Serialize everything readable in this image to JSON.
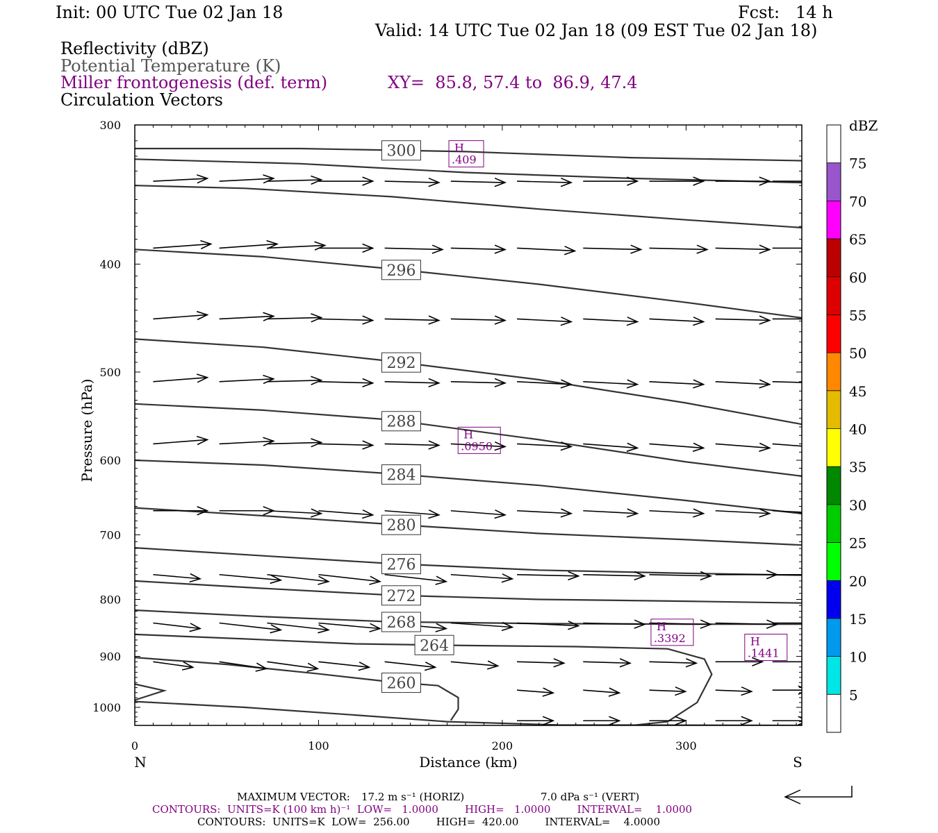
{
  "header": {
    "init": "Init: 00 UTC Tue 02 Jan 18",
    "fcst": "Fcst:   14 h",
    "valid": "Valid: 14 UTC Tue 02 Jan 18 (09 EST Tue 02 Jan 18)",
    "fields": [
      "Reflectivity (dBZ)",
      "Potential Temperature (K)",
      "Miller frontogenesis (def. term)",
      "Circulation Vectors"
    ],
    "xy": "XY=  85.8, 57.4 to  86.9, 47.4"
  },
  "colors": {
    "frontogenesis": "#800080",
    "theta": "#333333",
    "potential_temperature_label": "#555555"
  },
  "chart_data": {
    "type": "cross-section",
    "xlabel": "Distance (km)",
    "ylabel": "Pressure (hPa)",
    "xlim": [
      0,
      363
    ],
    "ylim": [
      1038,
      300
    ],
    "y_scale": "log (pressure), inverted",
    "x_ticks": [
      0,
      100,
      200,
      300
    ],
    "y_ticks": [
      300,
      400,
      500,
      600,
      700,
      800,
      900,
      1000
    ],
    "x_end_labels": {
      "left": "N",
      "right": "S"
    },
    "theta_contours": [
      {
        "label": "300",
        "points": [
          [
            0,
            315
          ],
          [
            90,
            315
          ],
          [
            180,
            317
          ],
          [
            270,
            321
          ],
          [
            363,
            323
          ]
        ]
      },
      {
        "label": "",
        "points": [
          [
            0,
            322
          ],
          [
            90,
            325
          ],
          [
            180,
            331
          ],
          [
            270,
            335
          ],
          [
            363,
            338
          ]
        ]
      },
      {
        "label": "",
        "points": [
          [
            0,
            340
          ],
          [
            60,
            342
          ],
          [
            140,
            348
          ],
          [
            220,
            357
          ],
          [
            300,
            365
          ],
          [
            363,
            371
          ]
        ]
      },
      {
        "label": "296",
        "points": [
          [
            0,
            388
          ],
          [
            70,
            394
          ],
          [
            140,
            404
          ],
          [
            220,
            417
          ],
          [
            300,
            433
          ],
          [
            363,
            447
          ]
        ]
      },
      {
        "label": "292",
        "points": [
          [
            0,
            467
          ],
          [
            70,
            475
          ],
          [
            140,
            489
          ],
          [
            220,
            508
          ],
          [
            300,
            533
          ],
          [
            363,
            557
          ]
        ]
      },
      {
        "label": "288",
        "points": [
          [
            0,
            534
          ],
          [
            70,
            541
          ],
          [
            140,
            552
          ],
          [
            220,
            575
          ],
          [
            300,
            602
          ],
          [
            363,
            620
          ]
        ]
      },
      {
        "label": "284",
        "points": [
          [
            0,
            600
          ],
          [
            70,
            606
          ],
          [
            140,
            617
          ],
          [
            220,
            632
          ],
          [
            300,
            652
          ],
          [
            363,
            670
          ]
        ]
      },
      {
        "label": "280",
        "points": [
          [
            0,
            662
          ],
          [
            70,
            673
          ],
          [
            140,
            685
          ],
          [
            220,
            698
          ],
          [
            300,
            707
          ],
          [
            363,
            715
          ]
        ]
      },
      {
        "label": "276",
        "points": [
          [
            0,
            719
          ],
          [
            70,
            731
          ],
          [
            140,
            743
          ],
          [
            220,
            753
          ],
          [
            300,
            758
          ],
          [
            363,
            761
          ]
        ]
      },
      {
        "label": "272",
        "points": [
          [
            0,
            770
          ],
          [
            70,
            782
          ],
          [
            140,
            793
          ],
          [
            220,
            800
          ],
          [
            300,
            803
          ],
          [
            363,
            806
          ]
        ]
      },
      {
        "label": "268",
        "points": [
          [
            0,
            818
          ],
          [
            70,
            829
          ],
          [
            140,
            838
          ],
          [
            220,
            841
          ],
          [
            300,
            842
          ],
          [
            363,
            842
          ]
        ]
      },
      {
        "label": "264",
        "points": [
          [
            0,
            860
          ],
          [
            60,
            868
          ],
          [
            120,
            877
          ],
          [
            180,
            880
          ],
          [
            240,
            882
          ],
          [
            290,
            886
          ],
          [
            310,
            905
          ],
          [
            314,
            934
          ],
          [
            306,
            990
          ],
          [
            290,
            1030
          ],
          [
            273,
            1037
          ]
        ]
      },
      {
        "label": "260",
        "points": [
          [
            0,
            902
          ],
          [
            50,
            915
          ],
          [
            100,
            933
          ],
          [
            140,
            949
          ],
          [
            165,
            956
          ],
          [
            176,
            980
          ],
          [
            176,
            1004
          ],
          [
            172,
            1027
          ]
        ]
      },
      {
        "label": "",
        "points": [
          [
            0,
            953
          ],
          [
            16,
            966
          ],
          [
            0,
            985
          ]
        ]
      },
      {
        "label": "",
        "points": [
          [
            0,
            988
          ],
          [
            60,
            1000
          ],
          [
            120,
            1016
          ],
          [
            170,
            1030
          ],
          [
            230,
            1037
          ],
          [
            363,
            1038
          ]
        ]
      }
    ],
    "frontogenesis_maxima": [
      {
        "label": "H",
        "value": ".409",
        "x": 180,
        "p": 318
      },
      {
        "label": "H",
        "value": ".0950",
        "x": 185,
        "p": 575
      },
      {
        "label": "H",
        "value": ".3392",
        "x": 290,
        "p": 855
      },
      {
        "label": "H",
        "value": ".1441",
        "x": 341,
        "p": 882
      }
    ],
    "circulation_vectors": {
      "x": [
        10,
        46,
        72,
        100,
        136,
        172,
        208,
        244,
        280,
        316,
        347
      ],
      "p": [
        337,
        387,
        448,
        510,
        580,
        666,
        760,
        840,
        910,
        965,
        1028
      ],
      "u": [
        [
          3.0,
          3.0,
          3.0,
          3.0,
          3.0,
          3.0,
          3.0,
          3.0,
          3.0,
          3.0,
          2.6
        ],
        [
          3.2,
          3.2,
          3.2,
          3.0,
          3.2,
          3.0,
          3.2,
          3.2,
          3.2,
          3.0,
          2.6
        ],
        [
          3.0,
          3.0,
          3.0,
          3.0,
          3.0,
          3.0,
          3.0,
          3.0,
          3.0,
          3.0,
          2.6
        ],
        [
          3.0,
          3.0,
          3.0,
          3.0,
          3.0,
          3.0,
          3.0,
          3.0,
          3.0,
          3.0,
          2.6
        ],
        [
          3.0,
          3.0,
          3.0,
          3.0,
          3.0,
          3.0,
          3.0,
          3.0,
          3.0,
          3.0,
          3.0
        ],
        [
          3.0,
          3.0,
          3.0,
          3.0,
          3.0,
          3.0,
          3.0,
          3.0,
          3.0,
          3.0,
          3.0
        ],
        [
          2.6,
          3.4,
          3.4,
          3.4,
          3.4,
          3.4,
          3.4,
          3.4,
          3.4,
          3.4,
          3.4
        ],
        [
          2.6,
          3.4,
          3.4,
          3.4,
          3.4,
          3.4,
          3.4,
          3.4,
          3.4,
          3.4,
          2.6
        ],
        [
          2.2,
          2.6,
          2.8,
          2.8,
          2.8,
          2.6,
          2.6,
          2.6,
          2.6,
          2.6,
          2.6
        ],
        [
          0.0,
          0.0,
          0.0,
          0.0,
          0.0,
          0.0,
          2.0,
          2.0,
          2.0,
          2.0,
          2.0
        ],
        [
          0.0,
          0.0,
          0.0,
          0.0,
          0.0,
          0.0,
          2.0,
          2.0,
          2.0,
          2.0,
          2.0
        ]
      ],
      "dp": [
        [
          -2,
          -2,
          -1,
          0,
          1,
          1,
          1,
          0,
          0,
          0,
          0
        ],
        [
          -3,
          -3,
          -2,
          0,
          1,
          1,
          2,
          1,
          1,
          1,
          0
        ],
        [
          -3,
          -2,
          -1,
          1,
          1,
          1,
          2,
          2,
          2,
          1,
          0
        ],
        [
          -3,
          -2,
          -1,
          1,
          1,
          1,
          2,
          2,
          2,
          2,
          1
        ],
        [
          -3,
          -2,
          -1,
          1,
          1,
          2,
          2,
          3,
          3,
          3,
          3
        ],
        [
          0,
          0,
          2,
          3,
          3,
          3,
          2,
          2,
          2,
          2,
          2
        ],
        [
          3,
          4,
          5,
          5,
          5,
          3,
          1,
          1,
          1,
          0,
          0
        ],
        [
          4,
          5,
          5,
          4,
          4,
          3,
          2,
          1,
          1,
          1,
          0
        ],
        [
          4,
          5,
          5,
          4,
          4,
          3,
          1,
          1,
          1,
          0,
          0
        ],
        [
          0,
          0,
          0,
          0,
          0,
          0,
          2,
          2,
          1,
          1,
          0
        ],
        [
          0,
          0,
          0,
          0,
          0,
          0,
          0,
          0,
          0,
          0,
          0
        ]
      ]
    }
  },
  "colorbar": {
    "unit": "dBZ",
    "labels": [
      "5",
      "10",
      "15",
      "20",
      "25",
      "30",
      "35",
      "40",
      "45",
      "50",
      "55",
      "60",
      "65",
      "70",
      "75"
    ],
    "colors": [
      "#00e5e5",
      "#0099ee",
      "#0000ee",
      "#00ff00",
      "#00cc00",
      "#008800",
      "#ffff00",
      "#e5bb00",
      "#ff8800",
      "#ff0000",
      "#dd0000",
      "#bb0000",
      "#ff00ff",
      "#9955cc",
      "#ffffff"
    ]
  },
  "footer": {
    "max_vector_label": "MAXIMUM VECTOR:",
    "horiz": "17.2 m s⁻¹ (HORIZ)",
    "vert": "7.0 dPa s⁻¹ (VERT)",
    "contours1": "CONTOURS:  UNITS=K (100 km h)⁻¹  LOW=   1.0000        HIGH=   1.0000        INTERVAL=    1.0000",
    "contours2": "CONTOURS:  UNITS=K  LOW=  256.00        HIGH=  420.00        INTERVAL=    4.0000"
  }
}
